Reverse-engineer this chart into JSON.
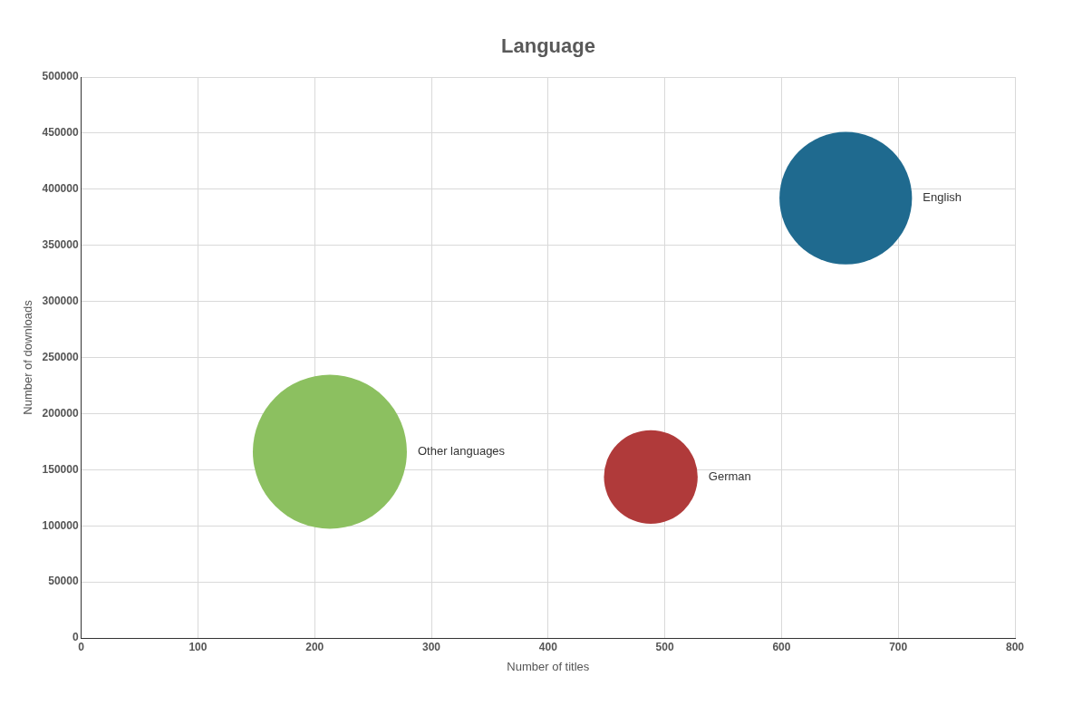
{
  "chart_data": {
    "type": "bubble",
    "title": "Language",
    "xlabel": "Number of titles",
    "ylabel": "Number of downloads",
    "xlim": [
      0,
      800
    ],
    "xticks": [
      0,
      100,
      200,
      300,
      400,
      500,
      600,
      700,
      800
    ],
    "ylim": [
      0,
      500000
    ],
    "yticks": [
      0,
      50000,
      100000,
      150000,
      200000,
      250000,
      300000,
      350000,
      400000,
      450000,
      500000
    ],
    "grid": true,
    "legend": false,
    "series": [
      {
        "name": "Other languages",
        "color": "#8cc060",
        "x": [
          213
        ],
        "values": [
          166000
        ],
        "sizes": [
          1
        ]
      },
      {
        "name": "German",
        "color": "#b03a3a",
        "x": [
          488
        ],
        "values": [
          143500
        ],
        "sizes": [
          0.37
        ]
      },
      {
        "name": "English",
        "color": "#1f6a8f",
        "x": [
          655
        ],
        "values": [
          392000
        ],
        "sizes": [
          0.74
        ]
      }
    ]
  }
}
